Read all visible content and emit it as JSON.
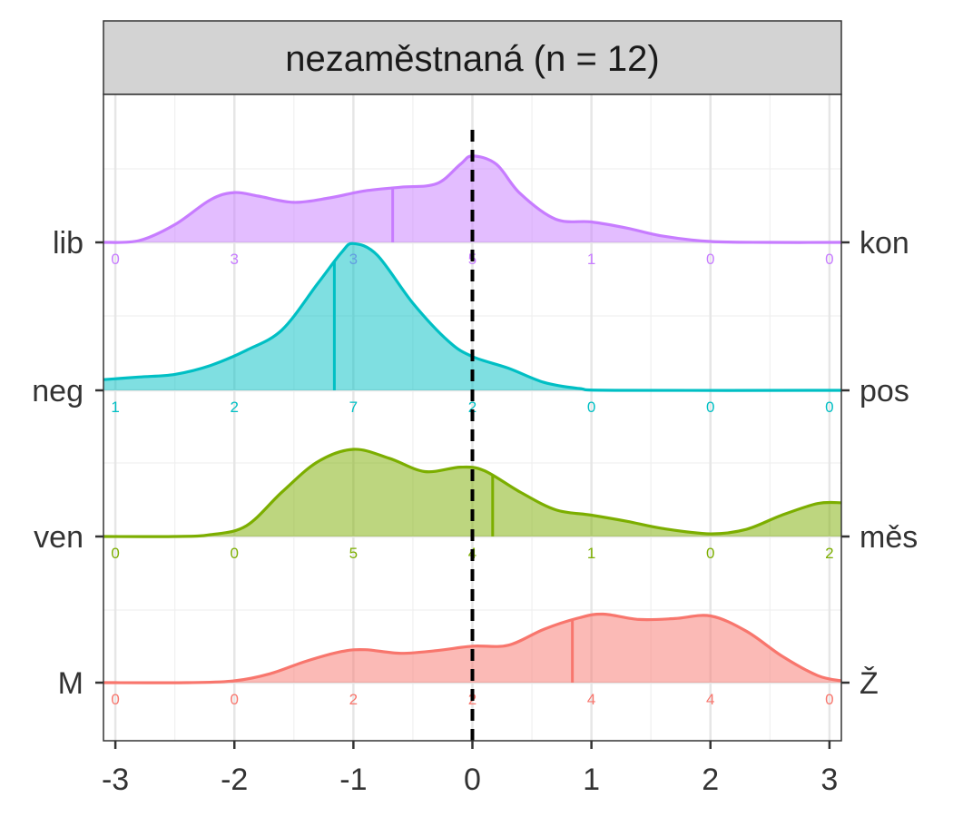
{
  "chart_data": {
    "type": "ridgeline",
    "facet_title": "nezaměstnaná (n = 12)",
    "xlim": [
      -3.1,
      3.1
    ],
    "x_ticks": [
      -3,
      -2,
      -1,
      0,
      1,
      2,
      3
    ],
    "x_tick_labels": [
      "-3",
      "-2",
      "-1",
      "0",
      "1",
      "2",
      "3"
    ],
    "reference_line_x": 0,
    "grid": true,
    "count_positions": [
      -3,
      -2,
      -1,
      0,
      1,
      2,
      3
    ],
    "series": [
      {
        "left_label": "lib",
        "right_label": "kon",
        "color": "#C77CFF",
        "mean": -0.67,
        "counts": [
          "0",
          "3",
          "3",
          "5",
          "1",
          "0",
          "0"
        ],
        "density": [
          [
            -3.1,
            0.0
          ],
          [
            -2.8,
            0.02
          ],
          [
            -2.5,
            0.2
          ],
          [
            -2.2,
            0.48
          ],
          [
            -2.0,
            0.56
          ],
          [
            -1.8,
            0.52
          ],
          [
            -1.5,
            0.45
          ],
          [
            -1.2,
            0.5
          ],
          [
            -0.9,
            0.58
          ],
          [
            -0.6,
            0.62
          ],
          [
            -0.3,
            0.66
          ],
          [
            -0.1,
            0.88
          ],
          [
            0.0,
            0.97
          ],
          [
            0.2,
            0.88
          ],
          [
            0.4,
            0.55
          ],
          [
            0.7,
            0.26
          ],
          [
            1.0,
            0.23
          ],
          [
            1.3,
            0.16
          ],
          [
            1.6,
            0.07
          ],
          [
            2.0,
            0.01
          ],
          [
            2.5,
            0.0
          ],
          [
            3.1,
            0.0
          ]
        ]
      },
      {
        "left_label": "neg",
        "right_label": "pos",
        "color": "#00BFC4",
        "mean": -1.16,
        "counts": [
          "1",
          "2",
          "7",
          "2",
          "0",
          "0",
          "0"
        ],
        "density": [
          [
            -3.1,
            0.12
          ],
          [
            -2.8,
            0.15
          ],
          [
            -2.5,
            0.18
          ],
          [
            -2.2,
            0.28
          ],
          [
            -1.9,
            0.45
          ],
          [
            -1.6,
            0.68
          ],
          [
            -1.3,
            1.2
          ],
          [
            -1.1,
            1.55
          ],
          [
            -1.0,
            1.65
          ],
          [
            -0.8,
            1.52
          ],
          [
            -0.5,
            0.98
          ],
          [
            -0.2,
            0.55
          ],
          [
            0.0,
            0.38
          ],
          [
            0.3,
            0.25
          ],
          [
            0.6,
            0.09
          ],
          [
            0.9,
            0.02
          ],
          [
            1.2,
            0.0
          ],
          [
            3.1,
            0.0
          ]
        ]
      },
      {
        "left_label": "ven",
        "right_label": "měs",
        "color": "#7CAE00",
        "mean": 0.17,
        "counts": [
          "0",
          "0",
          "5",
          "4",
          "1",
          "0",
          "2"
        ],
        "density": [
          [
            -3.1,
            0.0
          ],
          [
            -2.5,
            0.0
          ],
          [
            -2.2,
            0.02
          ],
          [
            -1.9,
            0.12
          ],
          [
            -1.6,
            0.5
          ],
          [
            -1.3,
            0.84
          ],
          [
            -1.0,
            0.98
          ],
          [
            -0.7,
            0.88
          ],
          [
            -0.4,
            0.73
          ],
          [
            -0.1,
            0.78
          ],
          [
            0.1,
            0.74
          ],
          [
            0.4,
            0.5
          ],
          [
            0.7,
            0.3
          ],
          [
            1.0,
            0.24
          ],
          [
            1.3,
            0.17
          ],
          [
            1.6,
            0.09
          ],
          [
            2.0,
            0.03
          ],
          [
            2.3,
            0.08
          ],
          [
            2.6,
            0.24
          ],
          [
            2.9,
            0.37
          ],
          [
            3.1,
            0.38
          ]
        ]
      },
      {
        "left_label": "M",
        "right_label": "Ž",
        "color": "#F8766D",
        "mean": 0.84,
        "counts": [
          "0",
          "0",
          "2",
          "2",
          "4",
          "4",
          "0"
        ],
        "density": [
          [
            -3.1,
            0.0
          ],
          [
            -2.4,
            0.0
          ],
          [
            -2.0,
            0.02
          ],
          [
            -1.7,
            0.1
          ],
          [
            -1.4,
            0.24
          ],
          [
            -1.1,
            0.35
          ],
          [
            -0.9,
            0.37
          ],
          [
            -0.6,
            0.33
          ],
          [
            -0.3,
            0.36
          ],
          [
            0.0,
            0.41
          ],
          [
            0.3,
            0.42
          ],
          [
            0.6,
            0.6
          ],
          [
            0.9,
            0.73
          ],
          [
            1.1,
            0.77
          ],
          [
            1.4,
            0.71
          ],
          [
            1.7,
            0.72
          ],
          [
            2.0,
            0.75
          ],
          [
            2.3,
            0.58
          ],
          [
            2.6,
            0.3
          ],
          [
            2.9,
            0.08
          ],
          [
            3.1,
            0.02
          ]
        ]
      }
    ]
  }
}
